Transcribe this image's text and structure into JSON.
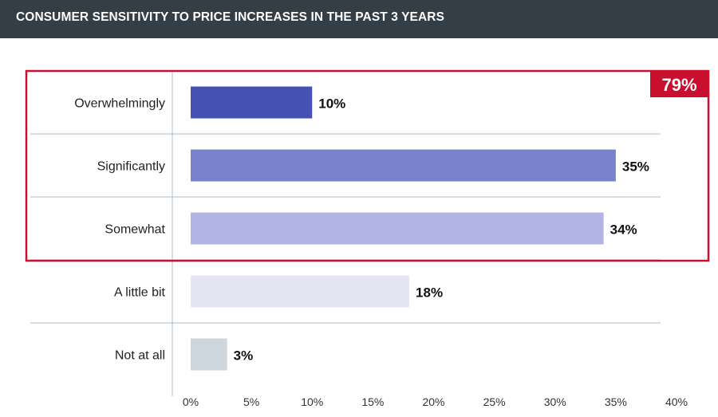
{
  "header": {
    "title": "CONSUMER SENSITIVITY TO PRICE INCREASES IN THE PAST 3 YEARS"
  },
  "highlight": {
    "label": "79%",
    "color": "#c8102e",
    "group": [
      "Overwhelmingly",
      "Significantly",
      "Somewhat"
    ]
  },
  "colors": {
    "header_bg": "#343e47",
    "gridline": "#a9bccd",
    "axis": "#a9bccd"
  },
  "chart_data": {
    "type": "bar",
    "orientation": "horizontal",
    "title": "CONSUMER SENSITIVITY TO PRICE INCREASES IN THE PAST 3 YEARS",
    "xlabel": "",
    "ylabel": "",
    "xlim": [
      0,
      40
    ],
    "ticks": [
      0,
      5,
      10,
      15,
      20,
      25,
      30,
      35,
      40
    ],
    "tick_labels": [
      "0%",
      "5%",
      "10%",
      "15%",
      "20%",
      "25%",
      "30%",
      "35%",
      "40%"
    ],
    "categories": [
      "Overwhelmingly",
      "Significantly",
      "Somewhat",
      "A little bit",
      "Not at all"
    ],
    "values": [
      10,
      35,
      34,
      18,
      3
    ],
    "value_labels": [
      "10%",
      "35%",
      "34%",
      "18%",
      "3%"
    ],
    "bar_colors": [
      "#4551b3",
      "#7983cc",
      "#b1b5e3",
      "#e4e6f4",
      "#cdd5dd"
    ]
  }
}
